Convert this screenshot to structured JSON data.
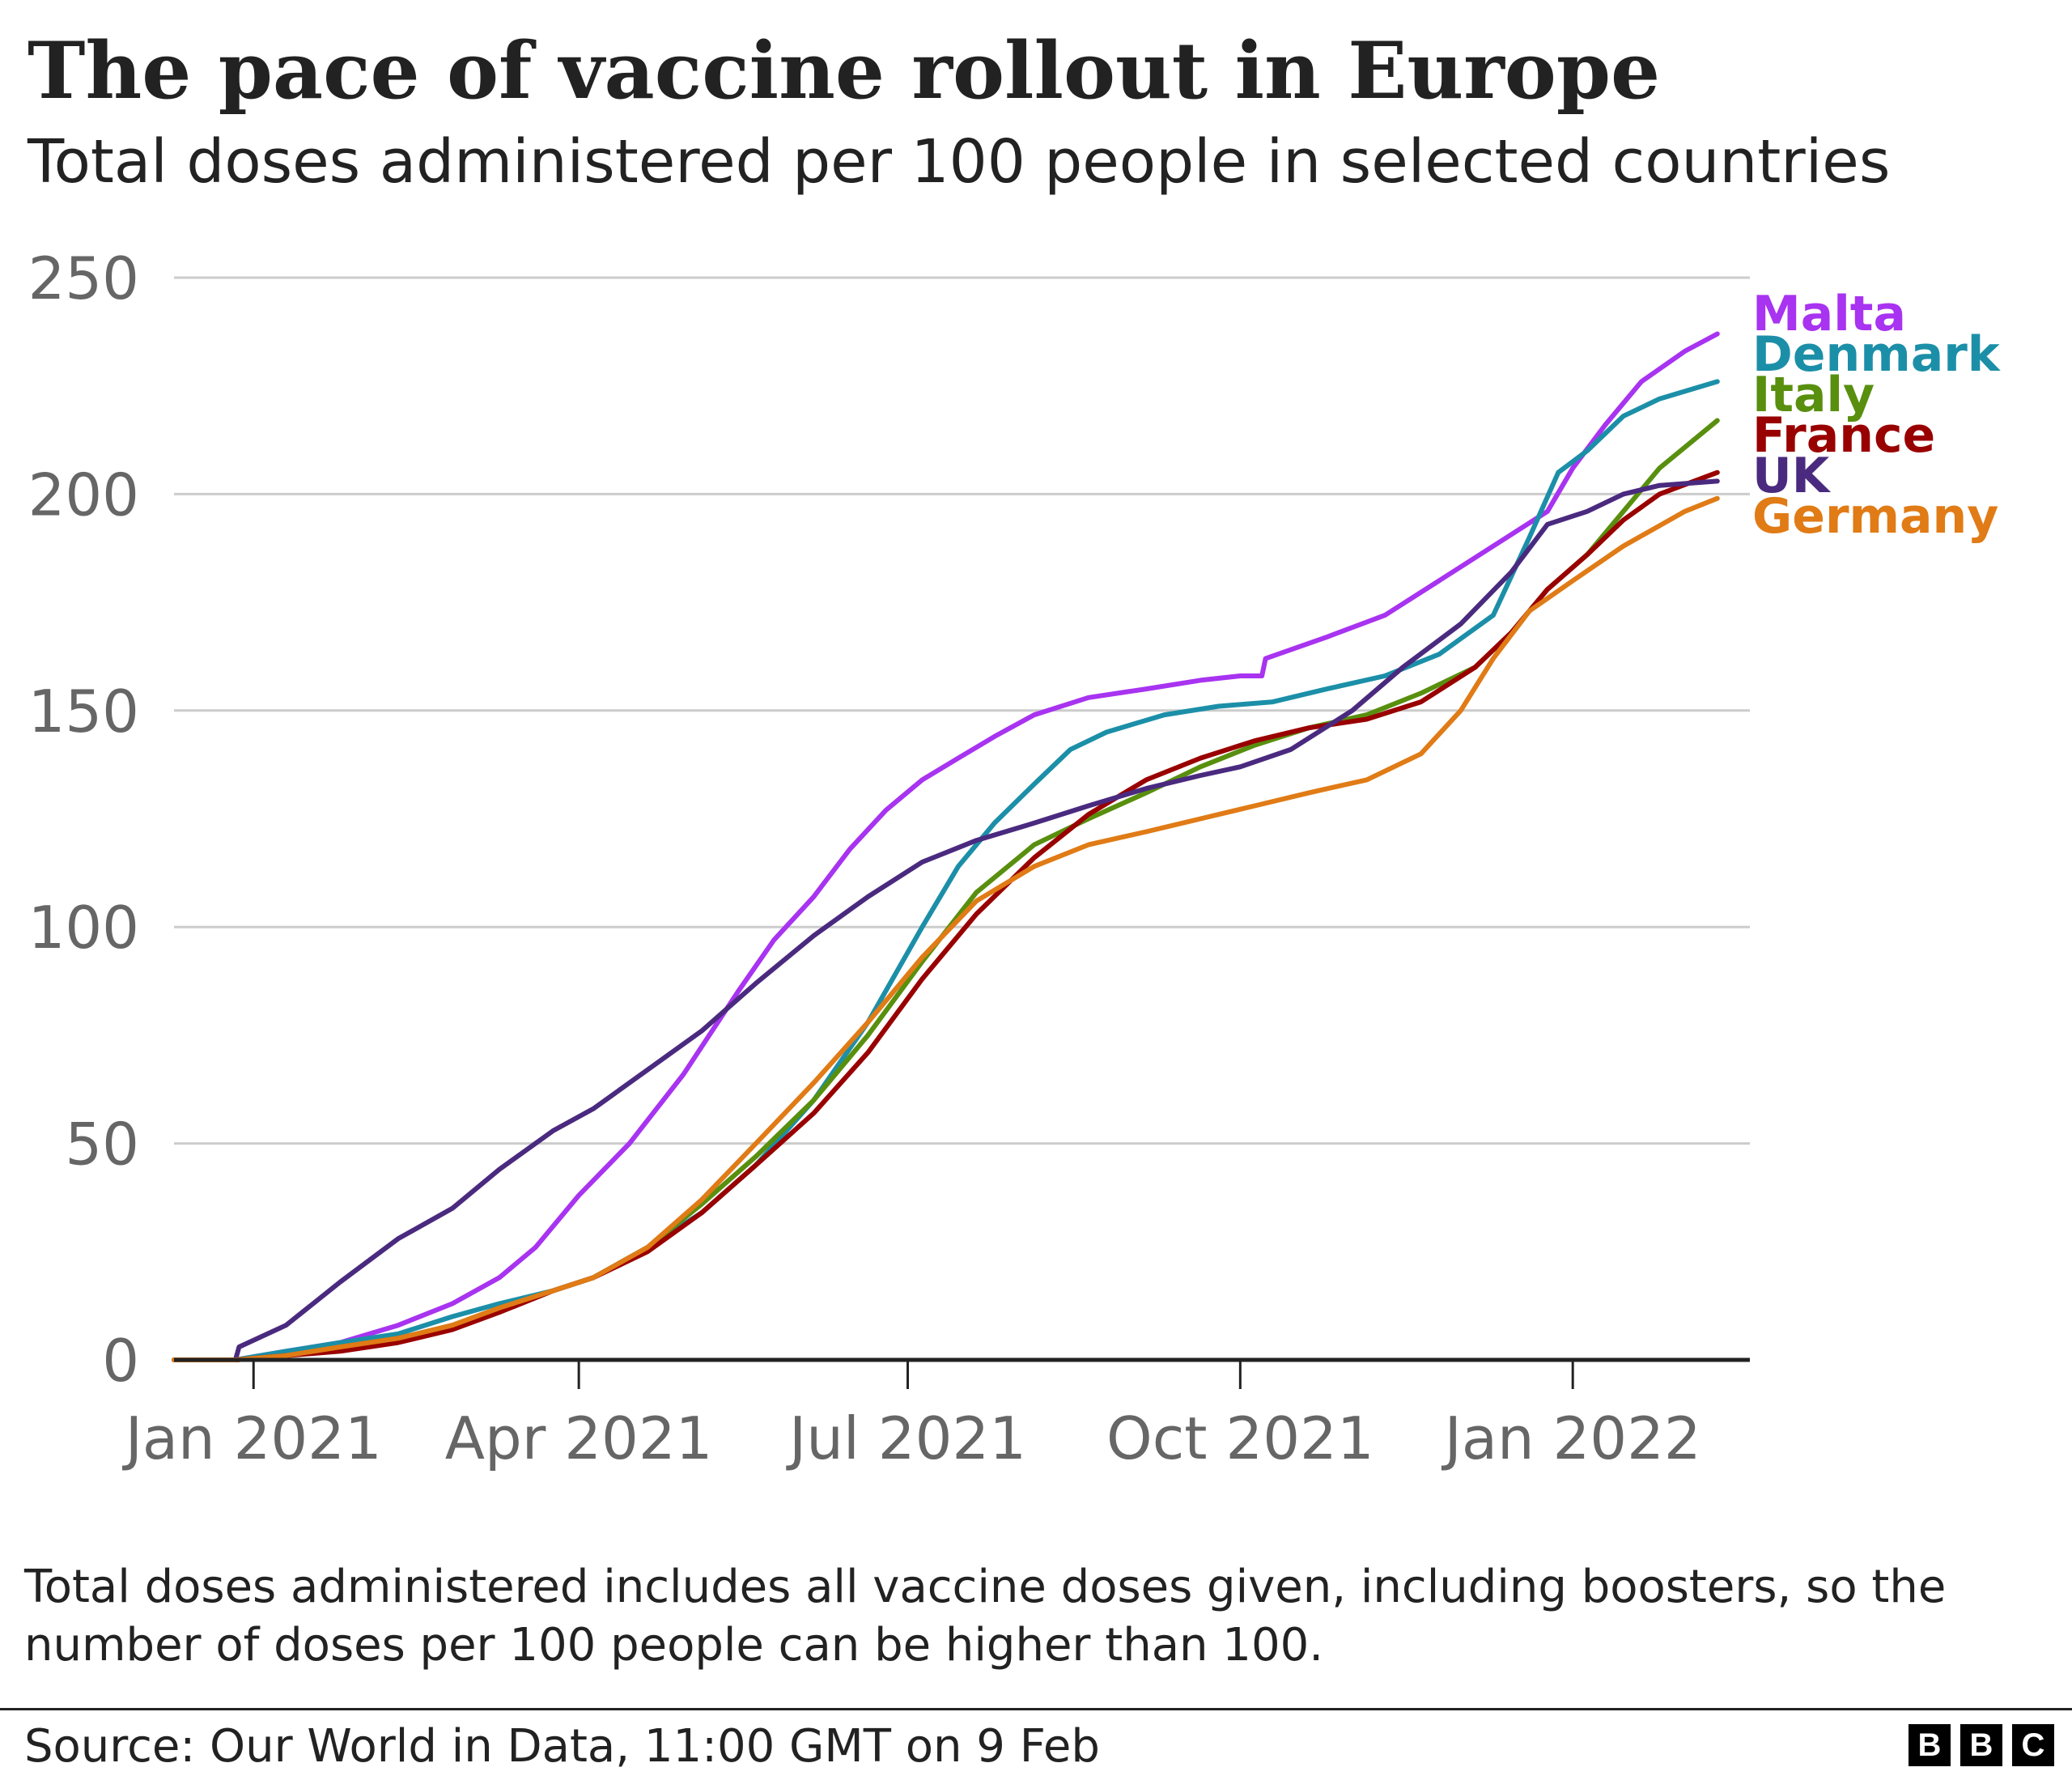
{
  "title": "The pace of vaccine rollout in Europe",
  "subtitle": "Total doses administered per 100 people in selected countries",
  "note": "Total doses administered includes all vaccine doses given, including boosters, so the number of doses per 100 people can be higher than 100.",
  "source": "Source: Our World in Data, 11:00 GMT on 9 Feb",
  "logo": [
    "B",
    "B",
    "C"
  ],
  "chart_data": {
    "type": "line",
    "title": "The pace of vaccine rollout in Europe",
    "subtitle": "Total doses administered per 100 people in selected countries",
    "xlabel": "",
    "ylabel": "",
    "xlim": [
      "2020-12-10",
      "2022-02-19"
    ],
    "ylim": [
      0,
      250
    ],
    "yticks": [
      0,
      50,
      100,
      150,
      200,
      250
    ],
    "xticks": [
      {
        "date": "2021-01-01",
        "label": "Jan 2021"
      },
      {
        "date": "2021-04-01",
        "label": "Apr 2021"
      },
      {
        "date": "2021-07-01",
        "label": "Jul 2021"
      },
      {
        "date": "2021-10-01",
        "label": "Oct 2021"
      },
      {
        "date": "2022-01-01",
        "label": "Jan 2022"
      }
    ],
    "grid": "horizontal",
    "legend": "direct labels at line ends, right",
    "series": [
      {
        "name": "Malta",
        "color": "#a833f0",
        "points": [
          [
            "2020-12-10",
            0
          ],
          [
            "2020-12-27",
            0
          ],
          [
            "2021-01-10",
            2
          ],
          [
            "2021-01-25",
            4
          ],
          [
            "2021-02-10",
            8
          ],
          [
            "2021-02-25",
            13
          ],
          [
            "2021-03-10",
            19
          ],
          [
            "2021-03-20",
            26
          ],
          [
            "2021-04-01",
            38
          ],
          [
            "2021-04-15",
            50
          ],
          [
            "2021-04-30",
            66
          ],
          [
            "2021-05-15",
            85
          ],
          [
            "2021-05-25",
            97
          ],
          [
            "2021-06-05",
            107
          ],
          [
            "2021-06-15",
            118
          ],
          [
            "2021-06-25",
            127
          ],
          [
            "2021-07-05",
            134
          ],
          [
            "2021-07-15",
            139
          ],
          [
            "2021-07-25",
            144
          ],
          [
            "2021-08-05",
            149
          ],
          [
            "2021-08-20",
            153
          ],
          [
            "2021-09-05",
            155
          ],
          [
            "2021-09-20",
            157
          ],
          [
            "2021-10-01",
            158
          ],
          [
            "2021-10-07",
            158
          ],
          [
            "2021-10-08",
            162
          ],
          [
            "2021-10-25",
            167
          ],
          [
            "2021-11-10",
            172
          ],
          [
            "2021-11-25",
            180
          ],
          [
            "2021-12-10",
            188
          ],
          [
            "2021-12-25",
            196
          ],
          [
            "2022-01-01",
            206
          ],
          [
            "2022-01-10",
            216
          ],
          [
            "2022-01-20",
            226
          ],
          [
            "2022-02-01",
            233
          ],
          [
            "2022-02-10",
            237
          ]
        ]
      },
      {
        "name": "Denmark",
        "color": "#1c8fa8",
        "points": [
          [
            "2020-12-10",
            0
          ],
          [
            "2020-12-27",
            0
          ],
          [
            "2021-01-10",
            2
          ],
          [
            "2021-01-25",
            4
          ],
          [
            "2021-02-10",
            6
          ],
          [
            "2021-02-25",
            10
          ],
          [
            "2021-03-10",
            13
          ],
          [
            "2021-03-25",
            16
          ],
          [
            "2021-04-05",
            19
          ],
          [
            "2021-04-20",
            26
          ],
          [
            "2021-05-05",
            34
          ],
          [
            "2021-05-20",
            45
          ],
          [
            "2021-06-05",
            60
          ],
          [
            "2021-06-20",
            78
          ],
          [
            "2021-07-05",
            100
          ],
          [
            "2021-07-15",
            114
          ],
          [
            "2021-07-25",
            124
          ],
          [
            "2021-08-05",
            133
          ],
          [
            "2021-08-15",
            141
          ],
          [
            "2021-08-25",
            145
          ],
          [
            "2021-09-10",
            149
          ],
          [
            "2021-09-25",
            151
          ],
          [
            "2021-10-10",
            152
          ],
          [
            "2021-10-25",
            155
          ],
          [
            "2021-11-10",
            158
          ],
          [
            "2021-11-25",
            163
          ],
          [
            "2021-12-10",
            172
          ],
          [
            "2021-12-20",
            190
          ],
          [
            "2021-12-28",
            205
          ],
          [
            "2022-01-05",
            210
          ],
          [
            "2022-01-15",
            218
          ],
          [
            "2022-01-25",
            222
          ],
          [
            "2022-02-10",
            226
          ]
        ]
      },
      {
        "name": "Italy",
        "color": "#588f0e",
        "points": [
          [
            "2020-12-10",
            0
          ],
          [
            "2020-12-27",
            0
          ],
          [
            "2021-01-10",
            1
          ],
          [
            "2021-01-25",
            3
          ],
          [
            "2021-02-10",
            5
          ],
          [
            "2021-02-25",
            8
          ],
          [
            "2021-03-10",
            12
          ],
          [
            "2021-03-25",
            16
          ],
          [
            "2021-04-05",
            19
          ],
          [
            "2021-04-20",
            26
          ],
          [
            "2021-05-05",
            36
          ],
          [
            "2021-05-20",
            47
          ],
          [
            "2021-06-05",
            60
          ],
          [
            "2021-06-20",
            75
          ],
          [
            "2021-07-05",
            92
          ],
          [
            "2021-07-20",
            108
          ],
          [
            "2021-08-05",
            119
          ],
          [
            "2021-08-20",
            125
          ],
          [
            "2021-09-05",
            131
          ],
          [
            "2021-09-20",
            137
          ],
          [
            "2021-10-05",
            142
          ],
          [
            "2021-10-20",
            146
          ],
          [
            "2021-11-05",
            149
          ],
          [
            "2021-11-20",
            154
          ],
          [
            "2021-12-05",
            160
          ],
          [
            "2021-12-15",
            168
          ],
          [
            "2021-12-25",
            178
          ],
          [
            "2022-01-05",
            186
          ],
          [
            "2022-01-15",
            196
          ],
          [
            "2022-01-25",
            206
          ],
          [
            "2022-02-10",
            217
          ]
        ]
      },
      {
        "name": "France",
        "color": "#990000",
        "points": [
          [
            "2020-12-10",
            0
          ],
          [
            "2020-12-27",
            0
          ],
          [
            "2021-01-10",
            1
          ],
          [
            "2021-01-25",
            2
          ],
          [
            "2021-02-10",
            4
          ],
          [
            "2021-02-25",
            7
          ],
          [
            "2021-03-10",
            11
          ],
          [
            "2021-03-25",
            16
          ],
          [
            "2021-04-05",
            19
          ],
          [
            "2021-04-20",
            25
          ],
          [
            "2021-05-05",
            34
          ],
          [
            "2021-05-20",
            45
          ],
          [
            "2021-06-05",
            57
          ],
          [
            "2021-06-20",
            71
          ],
          [
            "2021-07-05",
            88
          ],
          [
            "2021-07-20",
            103
          ],
          [
            "2021-08-05",
            116
          ],
          [
            "2021-08-20",
            126
          ],
          [
            "2021-09-05",
            134
          ],
          [
            "2021-09-20",
            139
          ],
          [
            "2021-10-05",
            143
          ],
          [
            "2021-10-20",
            146
          ],
          [
            "2021-11-05",
            148
          ],
          [
            "2021-11-20",
            152
          ],
          [
            "2021-12-05",
            160
          ],
          [
            "2021-12-15",
            168
          ],
          [
            "2021-12-25",
            178
          ],
          [
            "2022-01-05",
            186
          ],
          [
            "2022-01-15",
            194
          ],
          [
            "2022-01-25",
            200
          ],
          [
            "2022-02-10",
            205
          ]
        ]
      },
      {
        "name": "UK",
        "color": "#4a2a7f",
        "points": [
          [
            "2020-12-10",
            0
          ],
          [
            "2020-12-27",
            0
          ],
          [
            "2020-12-28",
            3
          ],
          [
            "2021-01-10",
            8
          ],
          [
            "2021-01-25",
            18
          ],
          [
            "2021-02-10",
            28
          ],
          [
            "2021-02-25",
            35
          ],
          [
            "2021-03-10",
            44
          ],
          [
            "2021-03-25",
            53
          ],
          [
            "2021-04-05",
            58
          ],
          [
            "2021-04-20",
            67
          ],
          [
            "2021-05-05",
            76
          ],
          [
            "2021-05-20",
            87
          ],
          [
            "2021-06-05",
            98
          ],
          [
            "2021-06-20",
            107
          ],
          [
            "2021-07-05",
            115
          ],
          [
            "2021-07-20",
            120
          ],
          [
            "2021-08-05",
            124
          ],
          [
            "2021-08-20",
            128
          ],
          [
            "2021-09-05",
            132
          ],
          [
            "2021-09-20",
            135
          ],
          [
            "2021-10-01",
            137
          ],
          [
            "2021-10-15",
            141
          ],
          [
            "2021-11-01",
            150
          ],
          [
            "2021-11-15",
            160
          ],
          [
            "2021-12-01",
            170
          ],
          [
            "2021-12-15",
            182
          ],
          [
            "2021-12-25",
            193
          ],
          [
            "2022-01-05",
            196
          ],
          [
            "2022-01-15",
            200
          ],
          [
            "2022-01-25",
            202
          ],
          [
            "2022-02-10",
            203
          ]
        ]
      },
      {
        "name": "Germany",
        "color": "#e07b16",
        "points": [
          [
            "2020-12-10",
            0
          ],
          [
            "2020-12-27",
            0
          ],
          [
            "2021-01-10",
            1
          ],
          [
            "2021-01-25",
            3
          ],
          [
            "2021-02-10",
            5
          ],
          [
            "2021-02-25",
            8
          ],
          [
            "2021-03-10",
            12
          ],
          [
            "2021-03-25",
            16
          ],
          [
            "2021-04-05",
            19
          ],
          [
            "2021-04-20",
            26
          ],
          [
            "2021-05-05",
            37
          ],
          [
            "2021-05-20",
            50
          ],
          [
            "2021-06-05",
            64
          ],
          [
            "2021-06-20",
            78
          ],
          [
            "2021-07-05",
            93
          ],
          [
            "2021-07-20",
            106
          ],
          [
            "2021-08-05",
            114
          ],
          [
            "2021-08-20",
            119
          ],
          [
            "2021-09-05",
            122
          ],
          [
            "2021-09-20",
            125
          ],
          [
            "2021-10-05",
            128
          ],
          [
            "2021-10-20",
            131
          ],
          [
            "2021-11-05",
            134
          ],
          [
            "2021-11-20",
            140
          ],
          [
            "2021-12-01",
            150
          ],
          [
            "2021-12-10",
            162
          ],
          [
            "2021-12-20",
            173
          ],
          [
            "2022-01-01",
            180
          ],
          [
            "2022-01-15",
            188
          ],
          [
            "2022-02-01",
            196
          ],
          [
            "2022-02-10",
            199
          ]
        ]
      }
    ]
  }
}
